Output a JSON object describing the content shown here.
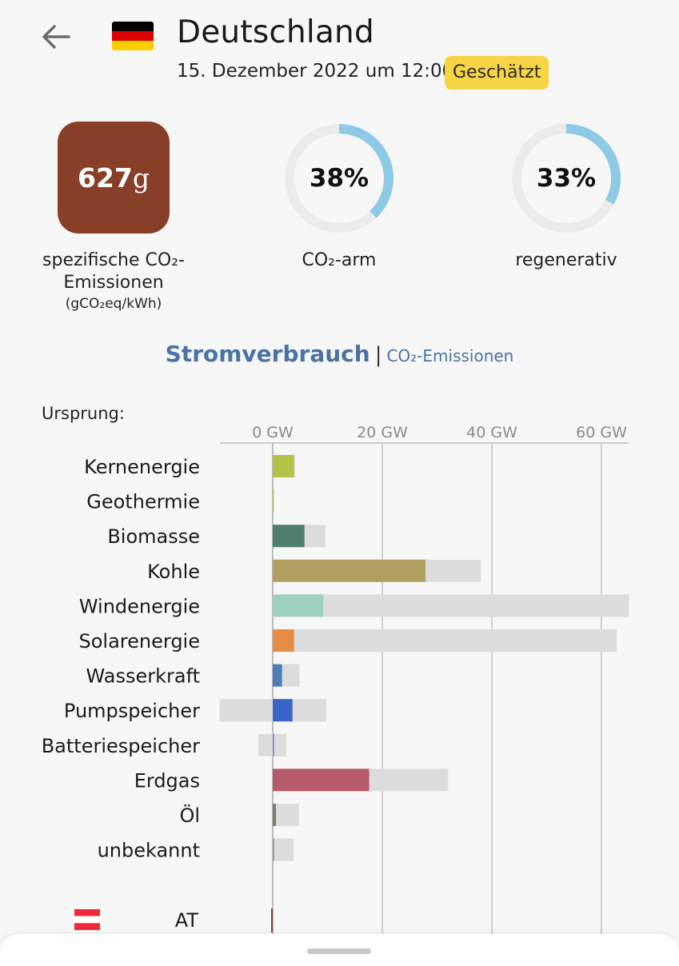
{
  "header": {
    "title": "Deutschland",
    "datetime": "15. Dezember 2022 um 12:00",
    "badge": "Geschätzt",
    "flag_colors": [
      "#000000",
      "#dd0000",
      "#ffce00"
    ]
  },
  "metrics": {
    "carbon_intensity": {
      "value": "627",
      "unit": "g",
      "label_line1": "spezifische CO₂-",
      "label_line2": "Emissionen",
      "unit_label": "(gCO₂eq/kWh)",
      "color": "#883f27"
    },
    "low_carbon": {
      "value": "38%",
      "fraction": 0.38,
      "label": "CO₂-arm"
    },
    "renewable": {
      "value": "33%",
      "fraction": 0.33,
      "label": "regenerativ"
    },
    "ring_colors": {
      "fill": "#8ecae6",
      "track": "#ebebeb"
    }
  },
  "mode_toggle": {
    "active": "Stromverbrauch",
    "separator": "|",
    "inactive": "CO₂-Emissionen"
  },
  "origin_label": "Ursprung:",
  "chart_data": {
    "type": "bar",
    "unit": "GW",
    "ticks": [
      0,
      20,
      40,
      60
    ],
    "tick_labels": [
      "0 GW",
      "20 GW",
      "40 GW",
      "60 GW"
    ],
    "xlim": [
      -9.7,
      65
    ],
    "categories": [
      "Kernenergie",
      "Geothermie",
      "Biomasse",
      "Kohle",
      "Windenergie",
      "Solarenergie",
      "Wasserkraft",
      "Pumpspeicher",
      "Batteriespeicher",
      "Erdgas",
      "Öl",
      "unbekannt"
    ],
    "series": [
      {
        "role": "production",
        "values": [
          3.9,
          0.05,
          5.8,
          27.9,
          9.2,
          3.9,
          1.7,
          3.6,
          0,
          17.6,
          0.6,
          0.3
        ]
      },
      {
        "role": "capacity",
        "ranges": [
          [
            0,
            4.1
          ],
          [
            0,
            0.1
          ],
          [
            0,
            9.6
          ],
          [
            0,
            38
          ],
          [
            0,
            65
          ],
          [
            0,
            62.8
          ],
          [
            0,
            4.9
          ],
          [
            -9.7,
            9.8
          ],
          [
            -2.6,
            2.5
          ],
          [
            0,
            32
          ],
          [
            0,
            4.8
          ],
          [
            0,
            3.8
          ]
        ]
      }
    ],
    "colors": [
      "#b5c146",
      "#c7c24a",
      "#4e7e6f",
      "#b19f60",
      "#9ed0c2",
      "#e68c44",
      "#4a7fb9",
      "#3c64c8",
      "#6b7ab3",
      "#b65a6c",
      "#8a7a68",
      "#a3a3a3"
    ],
    "capacity_color": "#dcdcdc",
    "exchange": {
      "label": "AT",
      "value": -0.3,
      "color": "#8b4a3a",
      "flag_colors": [
        "#ed2939",
        "#ffffff",
        "#ed2939"
      ]
    }
  }
}
